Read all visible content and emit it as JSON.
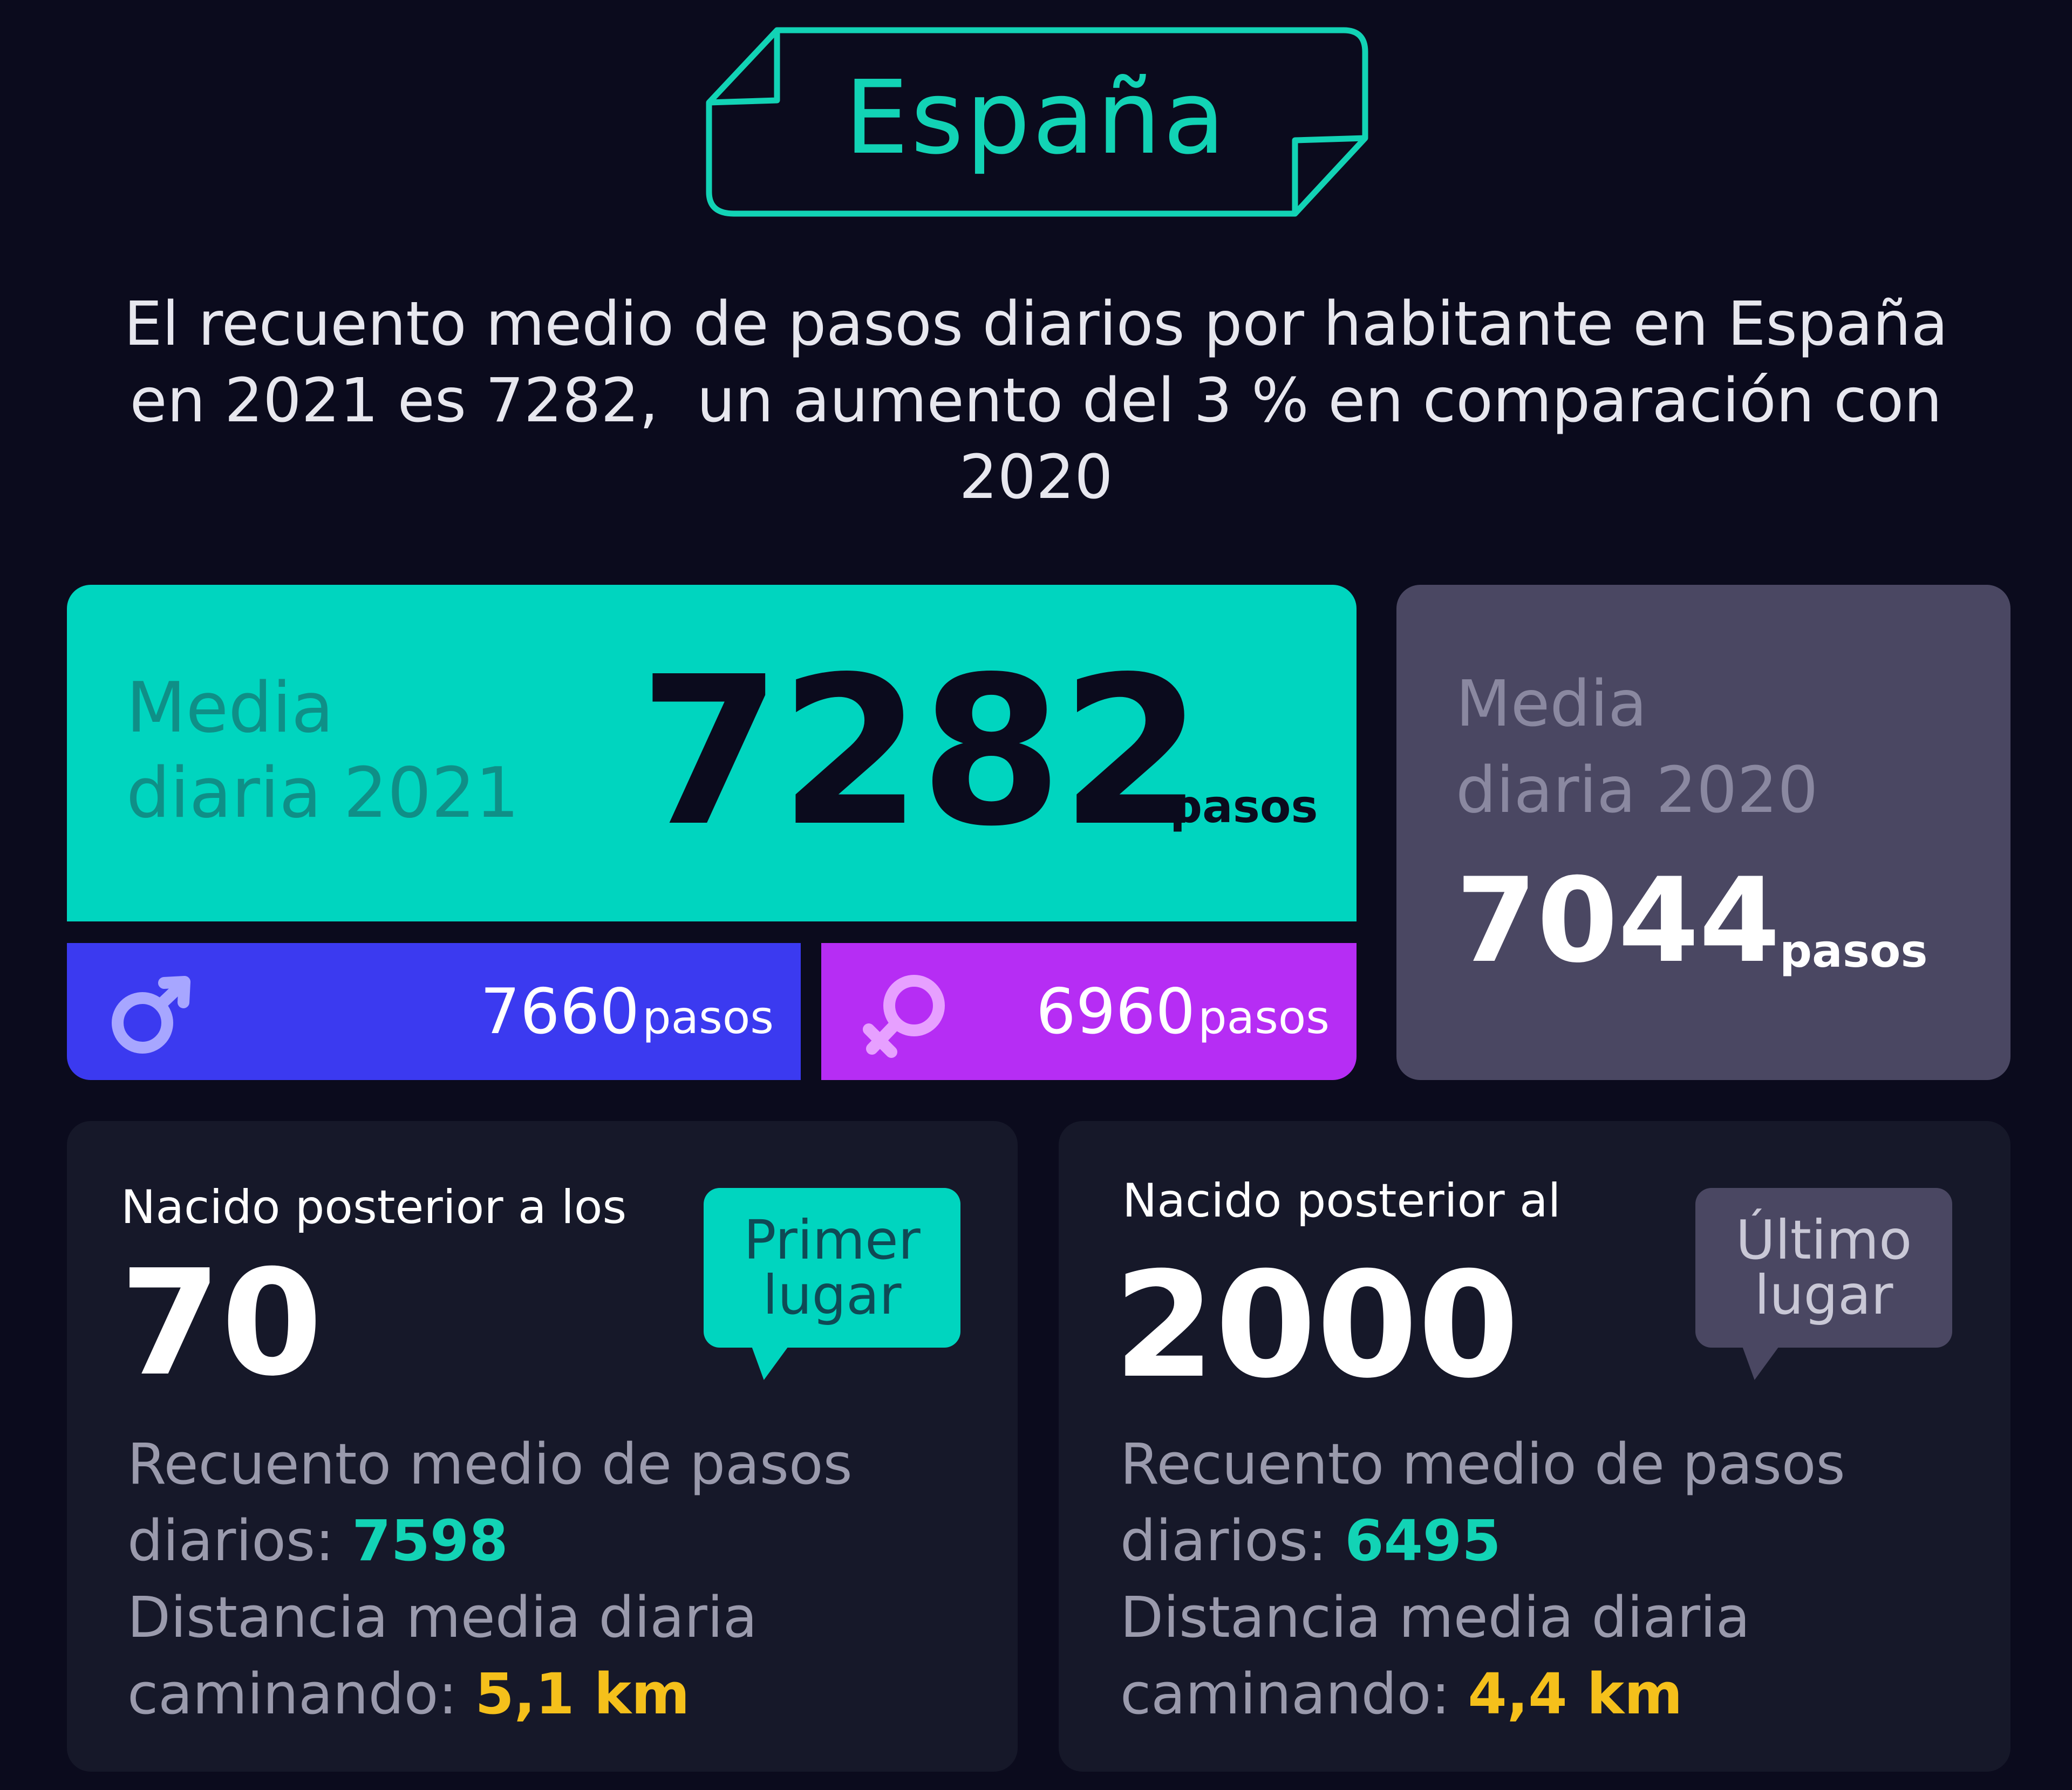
{
  "banner": {
    "title": "España"
  },
  "intro": {
    "line1": "El recuento medio de pasos diarios por habitante en España",
    "line2": "en 2021 es 7282,  un aumento del 3 % en comparación con",
    "line3": "2020"
  },
  "avg_2021": {
    "label_line1": "Media",
    "label_line2": "diaria 2021",
    "value": "7282",
    "unit": "pasos"
  },
  "male": {
    "icon": "male-symbol-icon",
    "value": "7660",
    "unit": "pasos"
  },
  "female": {
    "icon": "female-symbol-icon",
    "value": "6960",
    "unit": "pasos"
  },
  "avg_2020": {
    "label_line1": "Media",
    "label_line2": "diaria 2020",
    "value": "7044",
    "unit": "pasos"
  },
  "gen_70": {
    "heading": "Nacido posterior a los",
    "number": "70",
    "badge_line1": "Primer",
    "badge_line2": "lugar",
    "steps_line1": "Recuento medio de pasos",
    "steps_label": "diarios: ",
    "steps_value": "7598",
    "distance_line1": "Distancia media diaria",
    "distance_label": "caminando: ",
    "distance_value": "5,1 km"
  },
  "gen_2000": {
    "heading": "Nacido posterior al",
    "number": "2000",
    "badge_line1": "Último",
    "badge_line2": "lugar",
    "steps_line1": "Recuento medio de pasos",
    "steps_label": "diarios: ",
    "steps_value": "6495",
    "distance_line1": "Distancia media diaria",
    "distance_label": "caminando: ",
    "distance_value": "4,4 km"
  },
  "colors": {
    "background": "#0b0b1d",
    "teal": "#00d5bf",
    "male": "#3b3af0",
    "female": "#b62df4",
    "card_2020": "#4a4762",
    "card_dark": "#161829",
    "gold": "#f5c01b"
  }
}
